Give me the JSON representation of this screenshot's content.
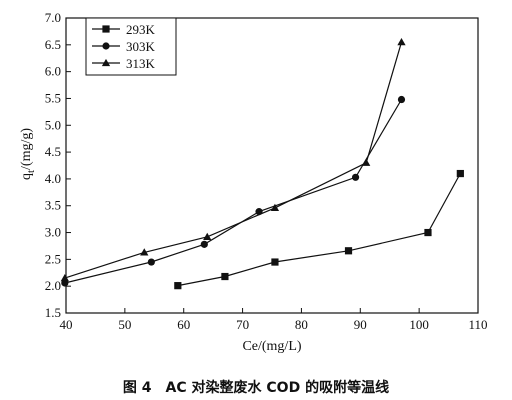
{
  "chart_data": {
    "type": "line",
    "xlabel": "Ce/(mg/L)",
    "ylabel": "q",
    "ylabel_sub": "t",
    "ylabel_unit": "/(mg/g)",
    "xlim": [
      40,
      110
    ],
    "ylim": [
      1.5,
      7.0
    ],
    "x_ticks": [
      40,
      50,
      60,
      70,
      80,
      90,
      100,
      110
    ],
    "y_ticks": [
      1.5,
      2.0,
      2.5,
      3.0,
      3.5,
      4.0,
      4.5,
      5.0,
      5.5,
      6.0,
      6.5,
      7.0
    ],
    "grid": false,
    "legend_position": "top-left",
    "series": [
      {
        "name": "293K",
        "marker": "square",
        "points": [
          [
            59,
            2.01
          ],
          [
            67,
            2.18
          ],
          [
            75.5,
            2.45
          ],
          [
            88,
            2.66
          ],
          [
            101.5,
            3.0
          ],
          [
            107,
            4.1
          ]
        ]
      },
      {
        "name": "303K",
        "marker": "circle",
        "points": [
          [
            39.8,
            2.06
          ],
          [
            54.5,
            2.45
          ],
          [
            63.5,
            2.78
          ],
          [
            72.8,
            3.39
          ],
          [
            89.2,
            4.03
          ],
          [
            97,
            5.48
          ]
        ]
      },
      {
        "name": "313K",
        "marker": "triangle",
        "points": [
          [
            39.8,
            2.15
          ],
          [
            53.3,
            2.63
          ],
          [
            64,
            2.92
          ],
          [
            75.5,
            3.46
          ],
          [
            91,
            4.3
          ],
          [
            97,
            6.55
          ]
        ]
      }
    ]
  },
  "caption": "图 4　AC 对染整废水 COD 的吸附等温线"
}
